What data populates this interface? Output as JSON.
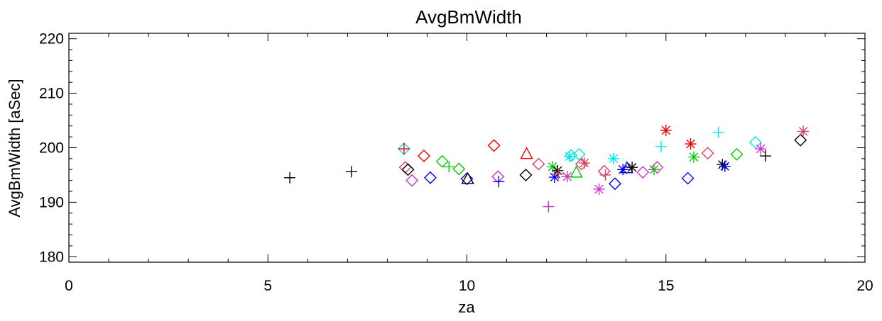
{
  "chart_data": {
    "type": "scatter",
    "title": "AvgBmWidth",
    "xlabel": "za",
    "ylabel": "AvgBmWidth [aSec]",
    "xlim": [
      0,
      20
    ],
    "ylim": [
      179,
      221
    ],
    "xticks": [
      0,
      5,
      10,
      15,
      20
    ],
    "xtick_labels": [
      "0",
      "5",
      "10",
      "15",
      "20"
    ],
    "yticks": [
      180,
      190,
      200,
      210,
      220
    ],
    "ytick_labels": [
      "180",
      "190",
      "200",
      "210",
      "220"
    ],
    "grid": false,
    "points": [
      {
        "x": 5.55,
        "y": 194.5,
        "marker": "plus",
        "color": "#000000"
      },
      {
        "x": 7.1,
        "y": 195.6,
        "marker": "plus",
        "color": "#000000"
      },
      {
        "x": 8.42,
        "y": 199.8,
        "marker": "diamond",
        "color": "#00e5ee"
      },
      {
        "x": 8.42,
        "y": 199.8,
        "marker": "plus",
        "color": "#ee0000"
      },
      {
        "x": 8.45,
        "y": 196.4,
        "marker": "diamond",
        "color": "#d64060"
      },
      {
        "x": 8.52,
        "y": 196.0,
        "marker": "diamond",
        "color": "#000000"
      },
      {
        "x": 8.62,
        "y": 194.0,
        "marker": "diamond",
        "color": "#cc33cc"
      },
      {
        "x": 8.92,
        "y": 198.5,
        "marker": "diamond",
        "color": "#ee0000"
      },
      {
        "x": 9.08,
        "y": 194.5,
        "marker": "diamond",
        "color": "#0000ee"
      },
      {
        "x": 9.38,
        "y": 197.5,
        "marker": "diamond",
        "color": "#00cc00"
      },
      {
        "x": 9.55,
        "y": 196.5,
        "marker": "plus",
        "color": "#00cc00"
      },
      {
        "x": 9.8,
        "y": 196.1,
        "marker": "diamond",
        "color": "#00cc00"
      },
      {
        "x": 10.0,
        "y": 194.3,
        "marker": "diamond",
        "color": "#0000ee"
      },
      {
        "x": 10.02,
        "y": 194.2,
        "marker": "triangle",
        "color": "#000000"
      },
      {
        "x": 10.68,
        "y": 200.4,
        "marker": "diamond",
        "color": "#ee0000"
      },
      {
        "x": 10.78,
        "y": 194.7,
        "marker": "diamond",
        "color": "#cc33cc"
      },
      {
        "x": 10.8,
        "y": 193.8,
        "marker": "plus",
        "color": "#0000ee"
      },
      {
        "x": 11.48,
        "y": 195.0,
        "marker": "diamond",
        "color": "#000000"
      },
      {
        "x": 11.5,
        "y": 198.8,
        "marker": "triangle",
        "color": "#ee0000"
      },
      {
        "x": 11.8,
        "y": 197.0,
        "marker": "diamond",
        "color": "#d64060"
      },
      {
        "x": 12.05,
        "y": 189.2,
        "marker": "plus",
        "color": "#cc33cc"
      },
      {
        "x": 12.15,
        "y": 196.5,
        "marker": "asterisk",
        "color": "#00cc00"
      },
      {
        "x": 12.2,
        "y": 194.6,
        "marker": "asterisk",
        "color": "#0000ee"
      },
      {
        "x": 12.28,
        "y": 195.8,
        "marker": "asterisk",
        "color": "#000000"
      },
      {
        "x": 12.3,
        "y": 195.2,
        "marker": "plus",
        "color": "#d64060"
      },
      {
        "x": 12.52,
        "y": 194.7,
        "marker": "asterisk",
        "color": "#cc33cc"
      },
      {
        "x": 12.58,
        "y": 198.4,
        "marker": "asterisk",
        "color": "#00e5ee"
      },
      {
        "x": 12.62,
        "y": 198.6,
        "marker": "diamond",
        "color": "#00e5ee"
      },
      {
        "x": 12.75,
        "y": 195.4,
        "marker": "triangle",
        "color": "#00cc00"
      },
      {
        "x": 12.82,
        "y": 198.8,
        "marker": "diamond",
        "color": "#00e5ee"
      },
      {
        "x": 12.88,
        "y": 197.0,
        "marker": "diamond",
        "color": "#d64060"
      },
      {
        "x": 12.95,
        "y": 197.2,
        "marker": "asterisk",
        "color": "#d64060"
      },
      {
        "x": 13.32,
        "y": 192.4,
        "marker": "asterisk",
        "color": "#cc33cc"
      },
      {
        "x": 13.45,
        "y": 195.7,
        "marker": "diamond",
        "color": "#d64060"
      },
      {
        "x": 13.48,
        "y": 195.0,
        "marker": "plus",
        "color": "#d64060"
      },
      {
        "x": 13.68,
        "y": 198.0,
        "marker": "asterisk",
        "color": "#00e5ee"
      },
      {
        "x": 13.72,
        "y": 193.4,
        "marker": "diamond",
        "color": "#0000ee"
      },
      {
        "x": 13.92,
        "y": 196.0,
        "marker": "asterisk",
        "color": "#0000ee"
      },
      {
        "x": 14.02,
        "y": 196.2,
        "marker": "triangle",
        "color": "#0000ee"
      },
      {
        "x": 14.15,
        "y": 196.4,
        "marker": "asterisk",
        "color": "#000000"
      },
      {
        "x": 14.42,
        "y": 195.5,
        "marker": "diamond",
        "color": "#cc33cc"
      },
      {
        "x": 14.7,
        "y": 196.0,
        "marker": "asterisk",
        "color": "#00cc00"
      },
      {
        "x": 14.78,
        "y": 196.4,
        "marker": "diamond",
        "color": "#cc33cc"
      },
      {
        "x": 14.88,
        "y": 200.2,
        "marker": "plus",
        "color": "#00e5ee"
      },
      {
        "x": 15.0,
        "y": 203.2,
        "marker": "asterisk",
        "color": "#ee0000"
      },
      {
        "x": 15.55,
        "y": 194.4,
        "marker": "diamond",
        "color": "#0000ee"
      },
      {
        "x": 15.62,
        "y": 200.7,
        "marker": "asterisk",
        "color": "#ee0000"
      },
      {
        "x": 15.7,
        "y": 198.3,
        "marker": "asterisk",
        "color": "#00cc00"
      },
      {
        "x": 16.05,
        "y": 199.0,
        "marker": "diamond",
        "color": "#d64060"
      },
      {
        "x": 16.32,
        "y": 202.8,
        "marker": "plus",
        "color": "#00e5ee"
      },
      {
        "x": 16.42,
        "y": 196.9,
        "marker": "asterisk",
        "color": "#000000"
      },
      {
        "x": 16.48,
        "y": 196.6,
        "marker": "asterisk",
        "color": "#0000ee"
      },
      {
        "x": 16.78,
        "y": 198.8,
        "marker": "diamond",
        "color": "#00cc00"
      },
      {
        "x": 17.25,
        "y": 201.0,
        "marker": "diamond",
        "color": "#00e5ee"
      },
      {
        "x": 17.38,
        "y": 199.8,
        "marker": "asterisk",
        "color": "#cc33cc"
      },
      {
        "x": 17.5,
        "y": 198.5,
        "marker": "plus",
        "color": "#000000"
      },
      {
        "x": 18.38,
        "y": 201.4,
        "marker": "diamond",
        "color": "#000000"
      },
      {
        "x": 18.45,
        "y": 203.0,
        "marker": "asterisk",
        "color": "#d64060"
      }
    ]
  }
}
